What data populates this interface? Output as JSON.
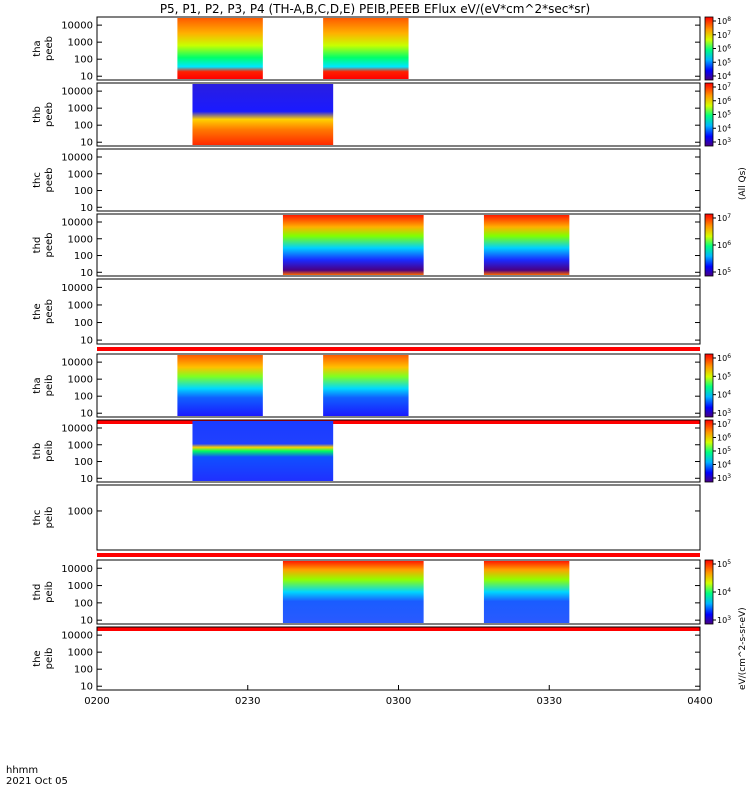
{
  "chart_data": {
    "type": "heatmap",
    "title": "P5, P1, P2, P3, P4 (TH-A,B,C,D,E) PEIB,PEEB EFlux eV/(eV*cm^2*sec*sr)",
    "x_label_line1": "hhmm",
    "x_label_line2": "2021 Oct 05",
    "x_ticks": [
      "0200",
      "0230",
      "0300",
      "0330",
      "0400"
    ],
    "x_range": [
      "0200",
      "0400"
    ],
    "y_scale": "log",
    "colormap": "rainbow (purple-blue-cyan-green-yellow-red)",
    "panels": [
      {
        "probe": "tha",
        "species": "peeb",
        "y_ticks": [
          "10",
          "100",
          "1000",
          "10000"
        ],
        "ylim": [
          6,
          30000
        ],
        "data_intervals": [
          [
            "0216",
            "0233"
          ],
          [
            "0245",
            "0302"
          ]
        ],
        "colorbar": {
          "ticks": [
            "10^8",
            "10^7",
            "10^6",
            "10^5",
            "10^4"
          ]
        }
      },
      {
        "probe": "thb",
        "species": "peeb",
        "y_ticks": [
          "10",
          "100",
          "1000",
          "10000"
        ],
        "ylim": [
          6,
          30000
        ],
        "data_intervals": [
          [
            "0219",
            "0247"
          ]
        ],
        "colorbar": {
          "ticks": [
            "10^7",
            "10^6",
            "10^5",
            "10^4",
            "10^3"
          ]
        }
      },
      {
        "probe": "thc",
        "species": "peeb",
        "y_ticks": [
          "10",
          "100",
          "1000",
          "10000"
        ],
        "ylim": [
          6,
          30000
        ],
        "data_intervals": []
      },
      {
        "probe": "thd",
        "species": "peeb",
        "y_ticks": [
          "10",
          "100",
          "1000",
          "10000"
        ],
        "ylim": [
          6,
          30000
        ],
        "data_intervals": [
          [
            "0237",
            "0305"
          ],
          [
            "0317",
            "0334"
          ]
        ],
        "colorbar": {
          "ticks": [
            "10^7",
            "10^6",
            "10^5"
          ]
        }
      },
      {
        "probe": "the",
        "species": "peeb",
        "y_ticks": [
          "10",
          "100",
          "1000",
          "10000"
        ],
        "ylim": [
          6,
          30000
        ],
        "data_intervals": []
      },
      {
        "probe": "tha",
        "species": "peib",
        "y_ticks": [
          "10",
          "100",
          "1000",
          "10000"
        ],
        "ylim": [
          6,
          30000
        ],
        "data_intervals": [
          [
            "0216",
            "0233"
          ],
          [
            "0245",
            "0302"
          ]
        ],
        "colorbar": {
          "ticks": [
            "10^6",
            "10^5",
            "10^4",
            "10^3"
          ]
        }
      },
      {
        "probe": "thb",
        "species": "peib",
        "y_ticks": [
          "10",
          "100",
          "1000",
          "10000"
        ],
        "ylim": [
          6,
          30000
        ],
        "data_intervals": [
          [
            "0219",
            "0247"
          ]
        ],
        "colorbar": {
          "ticks": [
            "10^7",
            "10^6",
            "10^5",
            "10^4",
            "10^3"
          ]
        }
      },
      {
        "probe": "thc",
        "species": "peib",
        "y_ticks": [
          "1000"
        ],
        "ylim": [
          6,
          30000
        ],
        "data_intervals": []
      },
      {
        "probe": "thd",
        "species": "peib",
        "y_ticks": [
          "10",
          "100",
          "1000",
          "10000"
        ],
        "ylim": [
          6,
          30000
        ],
        "data_intervals": [
          [
            "0237",
            "0305"
          ],
          [
            "0317",
            "0334"
          ]
        ],
        "colorbar": {
          "ticks": [
            "10^5",
            "10^4",
            "10^3"
          ]
        }
      },
      {
        "probe": "the",
        "species": "peib",
        "y_ticks": [
          "10",
          "100",
          "1000",
          "10000"
        ],
        "ylim": [
          6,
          30000
        ],
        "data_intervals": []
      }
    ],
    "colorbar_labels": [
      "eV/(cm^2-s-sr-eV)",
      "(All Qs)"
    ]
  }
}
